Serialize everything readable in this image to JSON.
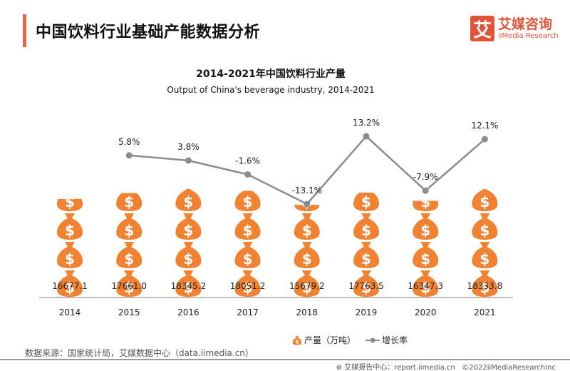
{
  "header": {
    "title": "中国饮料行业基础产能数据分析",
    "logo_icon": "艾",
    "logo_cn": "艾媒咨询",
    "logo_en": "iiMedia Research"
  },
  "colors": {
    "accent": "#f0643c",
    "bar": "#f08232",
    "line": "#8c8c8c"
  },
  "chart_data": {
    "type": "bar",
    "title": "2014-2021年中国饮料行业产量",
    "subtitle": "Output of China's beverage industry, 2014-2021",
    "categories": [
      "2014",
      "2015",
      "2016",
      "2017",
      "2018",
      "2019",
      "2020",
      "2021"
    ],
    "series": [
      {
        "name": "产量（万吨）",
        "type": "pictograph-bar",
        "icon": "money-bag-icon",
        "values": [
          16677.1,
          17661.0,
          18345.2,
          18051.2,
          15679.2,
          17763.5,
          16347.3,
          18333.8
        ],
        "labels": [
          "16677.1",
          "17661.0",
          "18345.2",
          "18051.2",
          "15679.2",
          "17763.5",
          "16347.3",
          "18333.8"
        ]
      },
      {
        "name": "增长率",
        "type": "line",
        "values": [
          null,
          5.8,
          3.8,
          -1.6,
          -13.1,
          13.2,
          -7.9,
          12.1
        ],
        "labels": [
          "",
          "5.8%",
          "3.8%",
          "-1.6%",
          "-13.1%",
          "13.2%",
          "-7.9%",
          "12.1%"
        ]
      }
    ],
    "grid": false,
    "legend": "bottom-right"
  },
  "footer": {
    "source": "数据来源：国家统计局，艾媒数据中心（data.iimedia.cn）",
    "report": "艾媒报告中心：report.iimedia.cn",
    "copyright": "©2022iiMediaResearchInc"
  }
}
